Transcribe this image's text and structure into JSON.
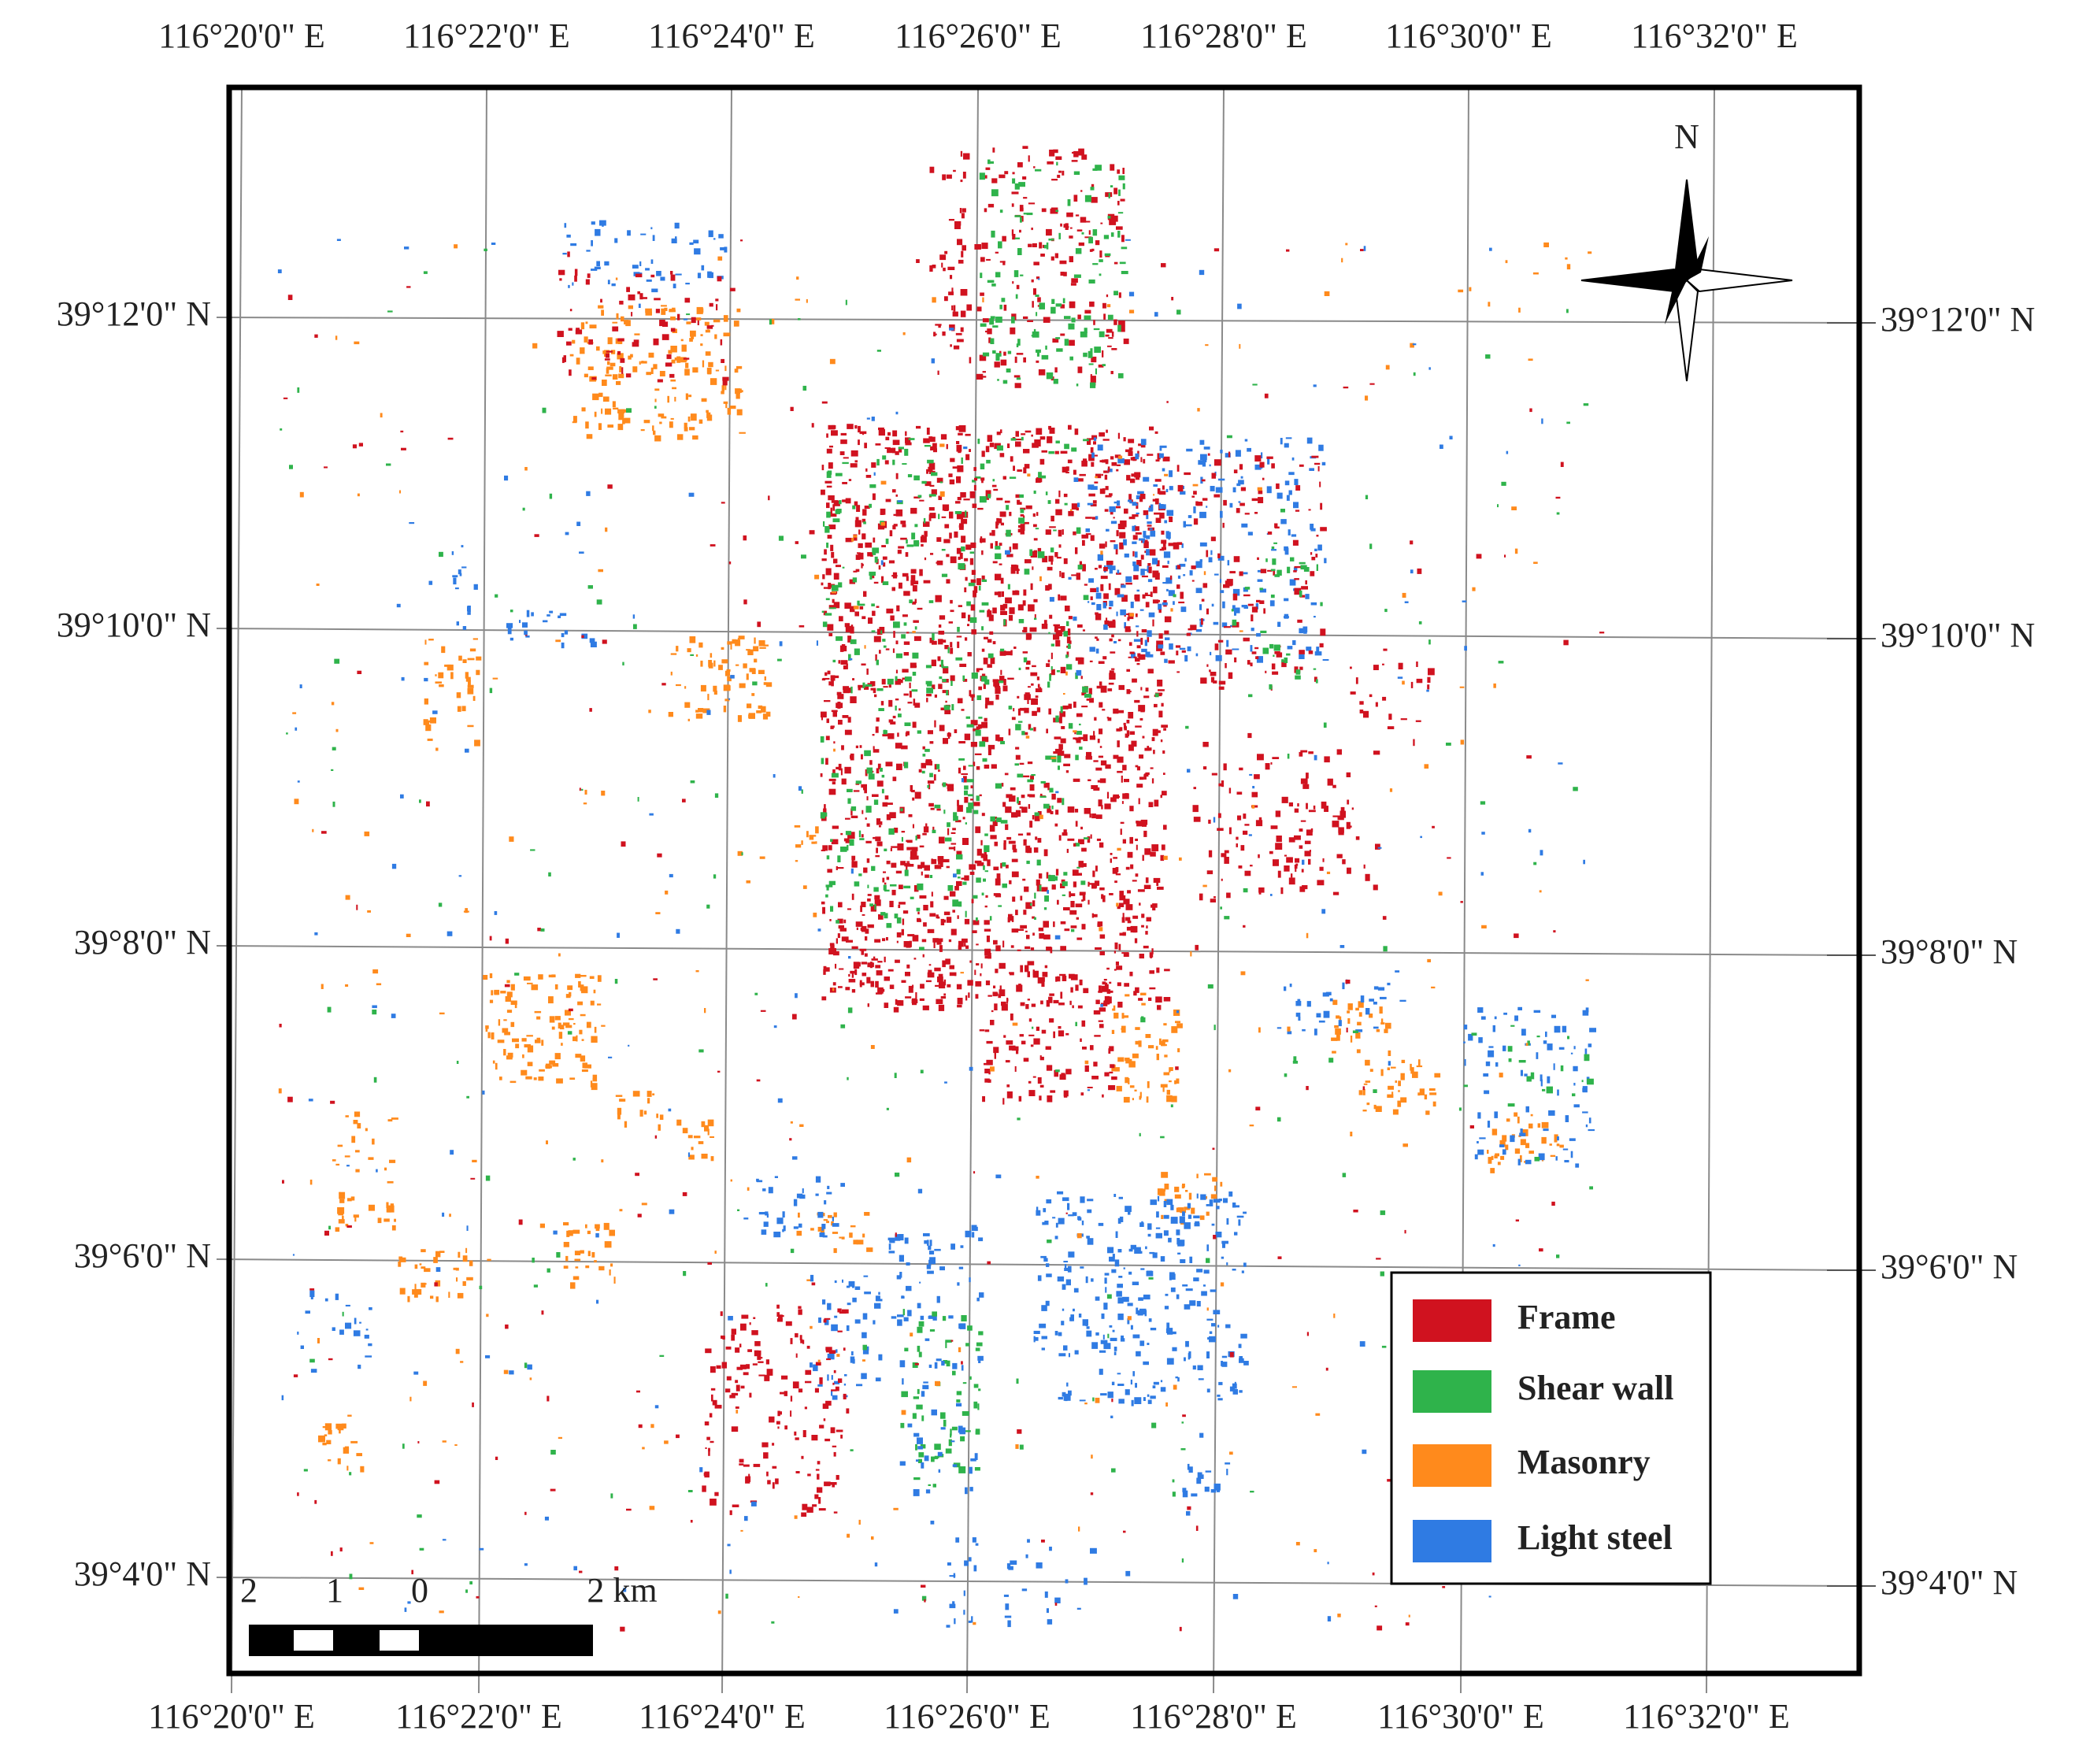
{
  "map": {
    "north": "N",
    "top_labels": [
      "116°20'0\" E",
      "116°22'0\" E",
      "116°24'0\" E",
      "116°26'0\" E",
      "116°28'0\" E",
      "116°30'0\" E",
      "116°32'0\" E"
    ],
    "bottom_labels": [
      "116°20'0\" E",
      "116°22'0\" E",
      "116°24'0\" E",
      "116°26'0\" E",
      "116°28'0\" E",
      "116°30'0\" E",
      "116°32'0\" E"
    ],
    "left_labels": [
      "39°12'0\" N",
      "39°10'0\" N",
      "39°8'0\" N",
      "39°6'0\" N",
      "39°4'0\" N"
    ],
    "right_labels": [
      "39°12'0\" N",
      "39°10'0\" N",
      "39°8'0\" N",
      "39°6'0\" N",
      "39°4'0\" N"
    ],
    "legend": [
      {
        "label": "Frame",
        "color": "#d0121f"
      },
      {
        "label": "Shear wall",
        "color": "#2fb34b"
      },
      {
        "label": "Masonry",
        "color": "#ff8a1c"
      },
      {
        "label": "Light steel",
        "color": "#2f7be3"
      }
    ],
    "scale_bar": [
      "2",
      "1",
      "0",
      "2 km"
    ]
  }
}
